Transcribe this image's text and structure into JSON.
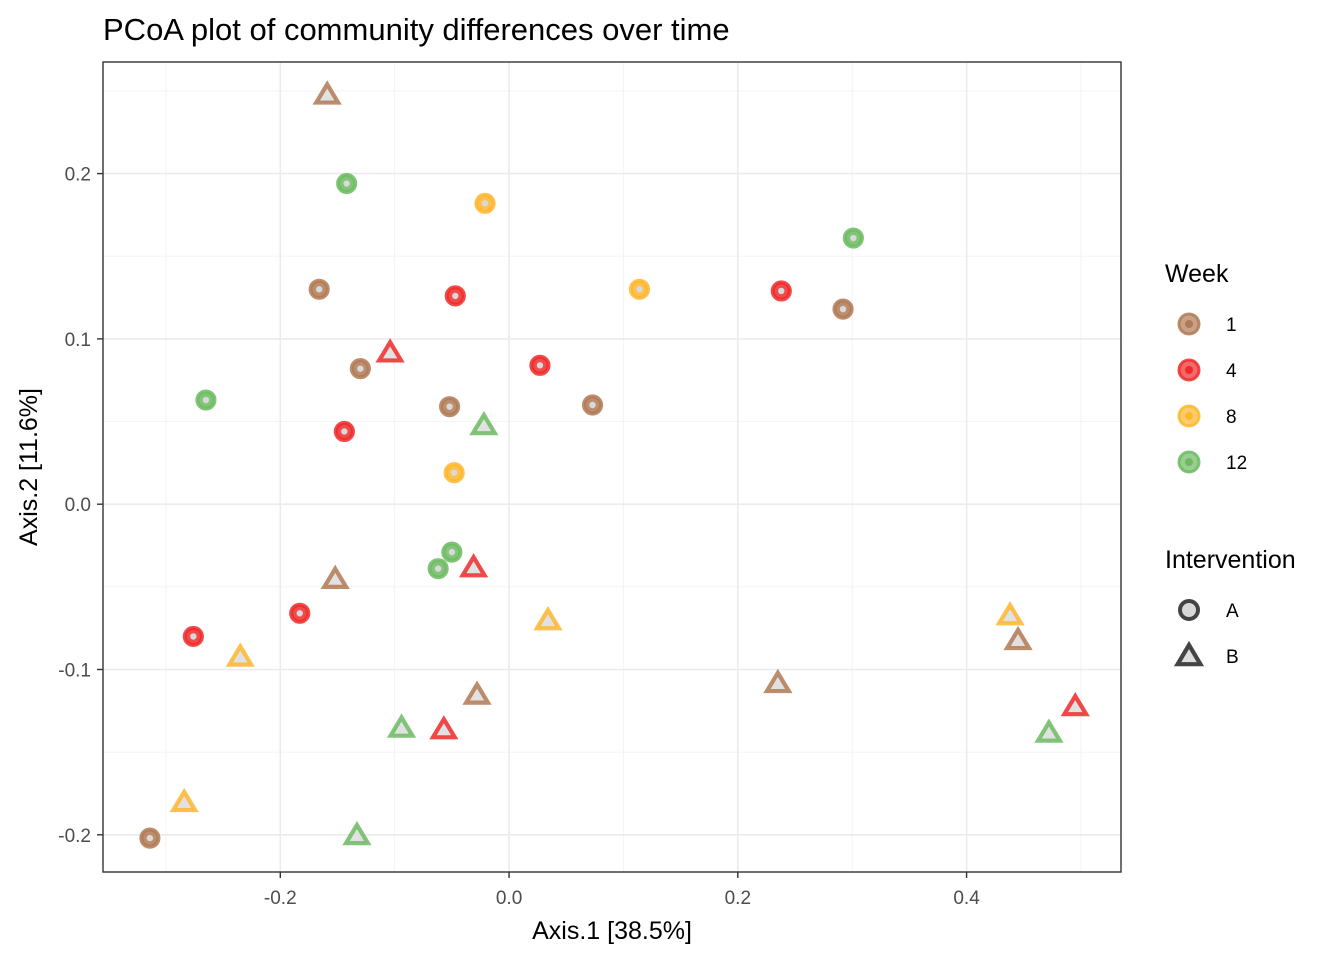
{
  "chart_data": {
    "type": "scatter",
    "title": "PCoA plot of community differences over time",
    "xlabel": "Axis.1   [38.5%]",
    "ylabel": "Axis.2   [11.6%]",
    "xlim": [
      -0.355,
      0.535
    ],
    "ylim": [
      -0.2225,
      0.2675
    ],
    "x_ticks": [
      -0.2,
      0.0,
      0.2,
      0.4
    ],
    "x_tick_labels": [
      "-0.2",
      "0.0",
      "0.2",
      "0.4"
    ],
    "y_ticks": [
      -0.2,
      -0.1,
      0.0,
      0.1,
      0.2
    ],
    "y_tick_labels": [
      "-0.2",
      "-0.1",
      "0.0",
      "0.1",
      "0.2"
    ],
    "grid": true,
    "legends": [
      {
        "title": "Week",
        "entries": [
          {
            "label": "1",
            "color": "#b07a55"
          },
          {
            "label": "4",
            "color": "#ee2a2a"
          },
          {
            "label": "8",
            "color": "#ffb62e"
          },
          {
            "label": "12",
            "color": "#6cbb62"
          }
        ]
      },
      {
        "title": "Intervention",
        "entries": [
          {
            "label": "A",
            "shape": "circle"
          },
          {
            "label": "B",
            "shape": "triangle"
          }
        ]
      }
    ],
    "points": [
      {
        "x": -0.159,
        "y": 0.247,
        "week": "1",
        "intervention": "B"
      },
      {
        "x": -0.142,
        "y": 0.194,
        "week": "12",
        "intervention": "A"
      },
      {
        "x": -0.021,
        "y": 0.182,
        "week": "8",
        "intervention": "A"
      },
      {
        "x": 0.301,
        "y": 0.161,
        "week": "12",
        "intervention": "A"
      },
      {
        "x": -0.166,
        "y": 0.13,
        "week": "1",
        "intervention": "A"
      },
      {
        "x": -0.047,
        "y": 0.126,
        "week": "4",
        "intervention": "A"
      },
      {
        "x": 0.114,
        "y": 0.13,
        "week": "8",
        "intervention": "A"
      },
      {
        "x": 0.238,
        "y": 0.129,
        "week": "4",
        "intervention": "A"
      },
      {
        "x": 0.292,
        "y": 0.118,
        "week": "1",
        "intervention": "A"
      },
      {
        "x": -0.104,
        "y": 0.091,
        "week": "4",
        "intervention": "B"
      },
      {
        "x": -0.13,
        "y": 0.082,
        "week": "1",
        "intervention": "A"
      },
      {
        "x": 0.027,
        "y": 0.084,
        "week": "4",
        "intervention": "A"
      },
      {
        "x": -0.265,
        "y": 0.063,
        "week": "12",
        "intervention": "A"
      },
      {
        "x": -0.052,
        "y": 0.059,
        "week": "1",
        "intervention": "A"
      },
      {
        "x": 0.073,
        "y": 0.06,
        "week": "1",
        "intervention": "A"
      },
      {
        "x": -0.144,
        "y": 0.044,
        "week": "4",
        "intervention": "A"
      },
      {
        "x": -0.022,
        "y": 0.047,
        "week": "12",
        "intervention": "B"
      },
      {
        "x": -0.048,
        "y": 0.019,
        "week": "8",
        "intervention": "A"
      },
      {
        "x": -0.05,
        "y": -0.029,
        "week": "12",
        "intervention": "A"
      },
      {
        "x": -0.062,
        "y": -0.039,
        "week": "12",
        "intervention": "A"
      },
      {
        "x": -0.031,
        "y": -0.039,
        "week": "4",
        "intervention": "B"
      },
      {
        "x": -0.152,
        "y": -0.046,
        "week": "1",
        "intervention": "B"
      },
      {
        "x": 0.034,
        "y": -0.071,
        "week": "8",
        "intervention": "B"
      },
      {
        "x": -0.183,
        "y": -0.066,
        "week": "4",
        "intervention": "A"
      },
      {
        "x": -0.276,
        "y": -0.08,
        "week": "4",
        "intervention": "A"
      },
      {
        "x": -0.235,
        "y": -0.093,
        "week": "8",
        "intervention": "B"
      },
      {
        "x": 0.438,
        "y": -0.068,
        "week": "8",
        "intervention": "B"
      },
      {
        "x": 0.445,
        "y": -0.083,
        "week": "1",
        "intervention": "B"
      },
      {
        "x": -0.028,
        "y": -0.116,
        "week": "1",
        "intervention": "B"
      },
      {
        "x": 0.235,
        "y": -0.109,
        "week": "1",
        "intervention": "B"
      },
      {
        "x": -0.094,
        "y": -0.136,
        "week": "12",
        "intervention": "B"
      },
      {
        "x": -0.057,
        "y": -0.137,
        "week": "4",
        "intervention": "B"
      },
      {
        "x": 0.495,
        "y": -0.123,
        "week": "4",
        "intervention": "B"
      },
      {
        "x": 0.472,
        "y": -0.139,
        "week": "12",
        "intervention": "B"
      },
      {
        "x": -0.284,
        "y": -0.181,
        "week": "8",
        "intervention": "B"
      },
      {
        "x": -0.314,
        "y": -0.202,
        "week": "1",
        "intervention": "A"
      },
      {
        "x": -0.133,
        "y": -0.201,
        "week": "12",
        "intervention": "B"
      }
    ]
  }
}
